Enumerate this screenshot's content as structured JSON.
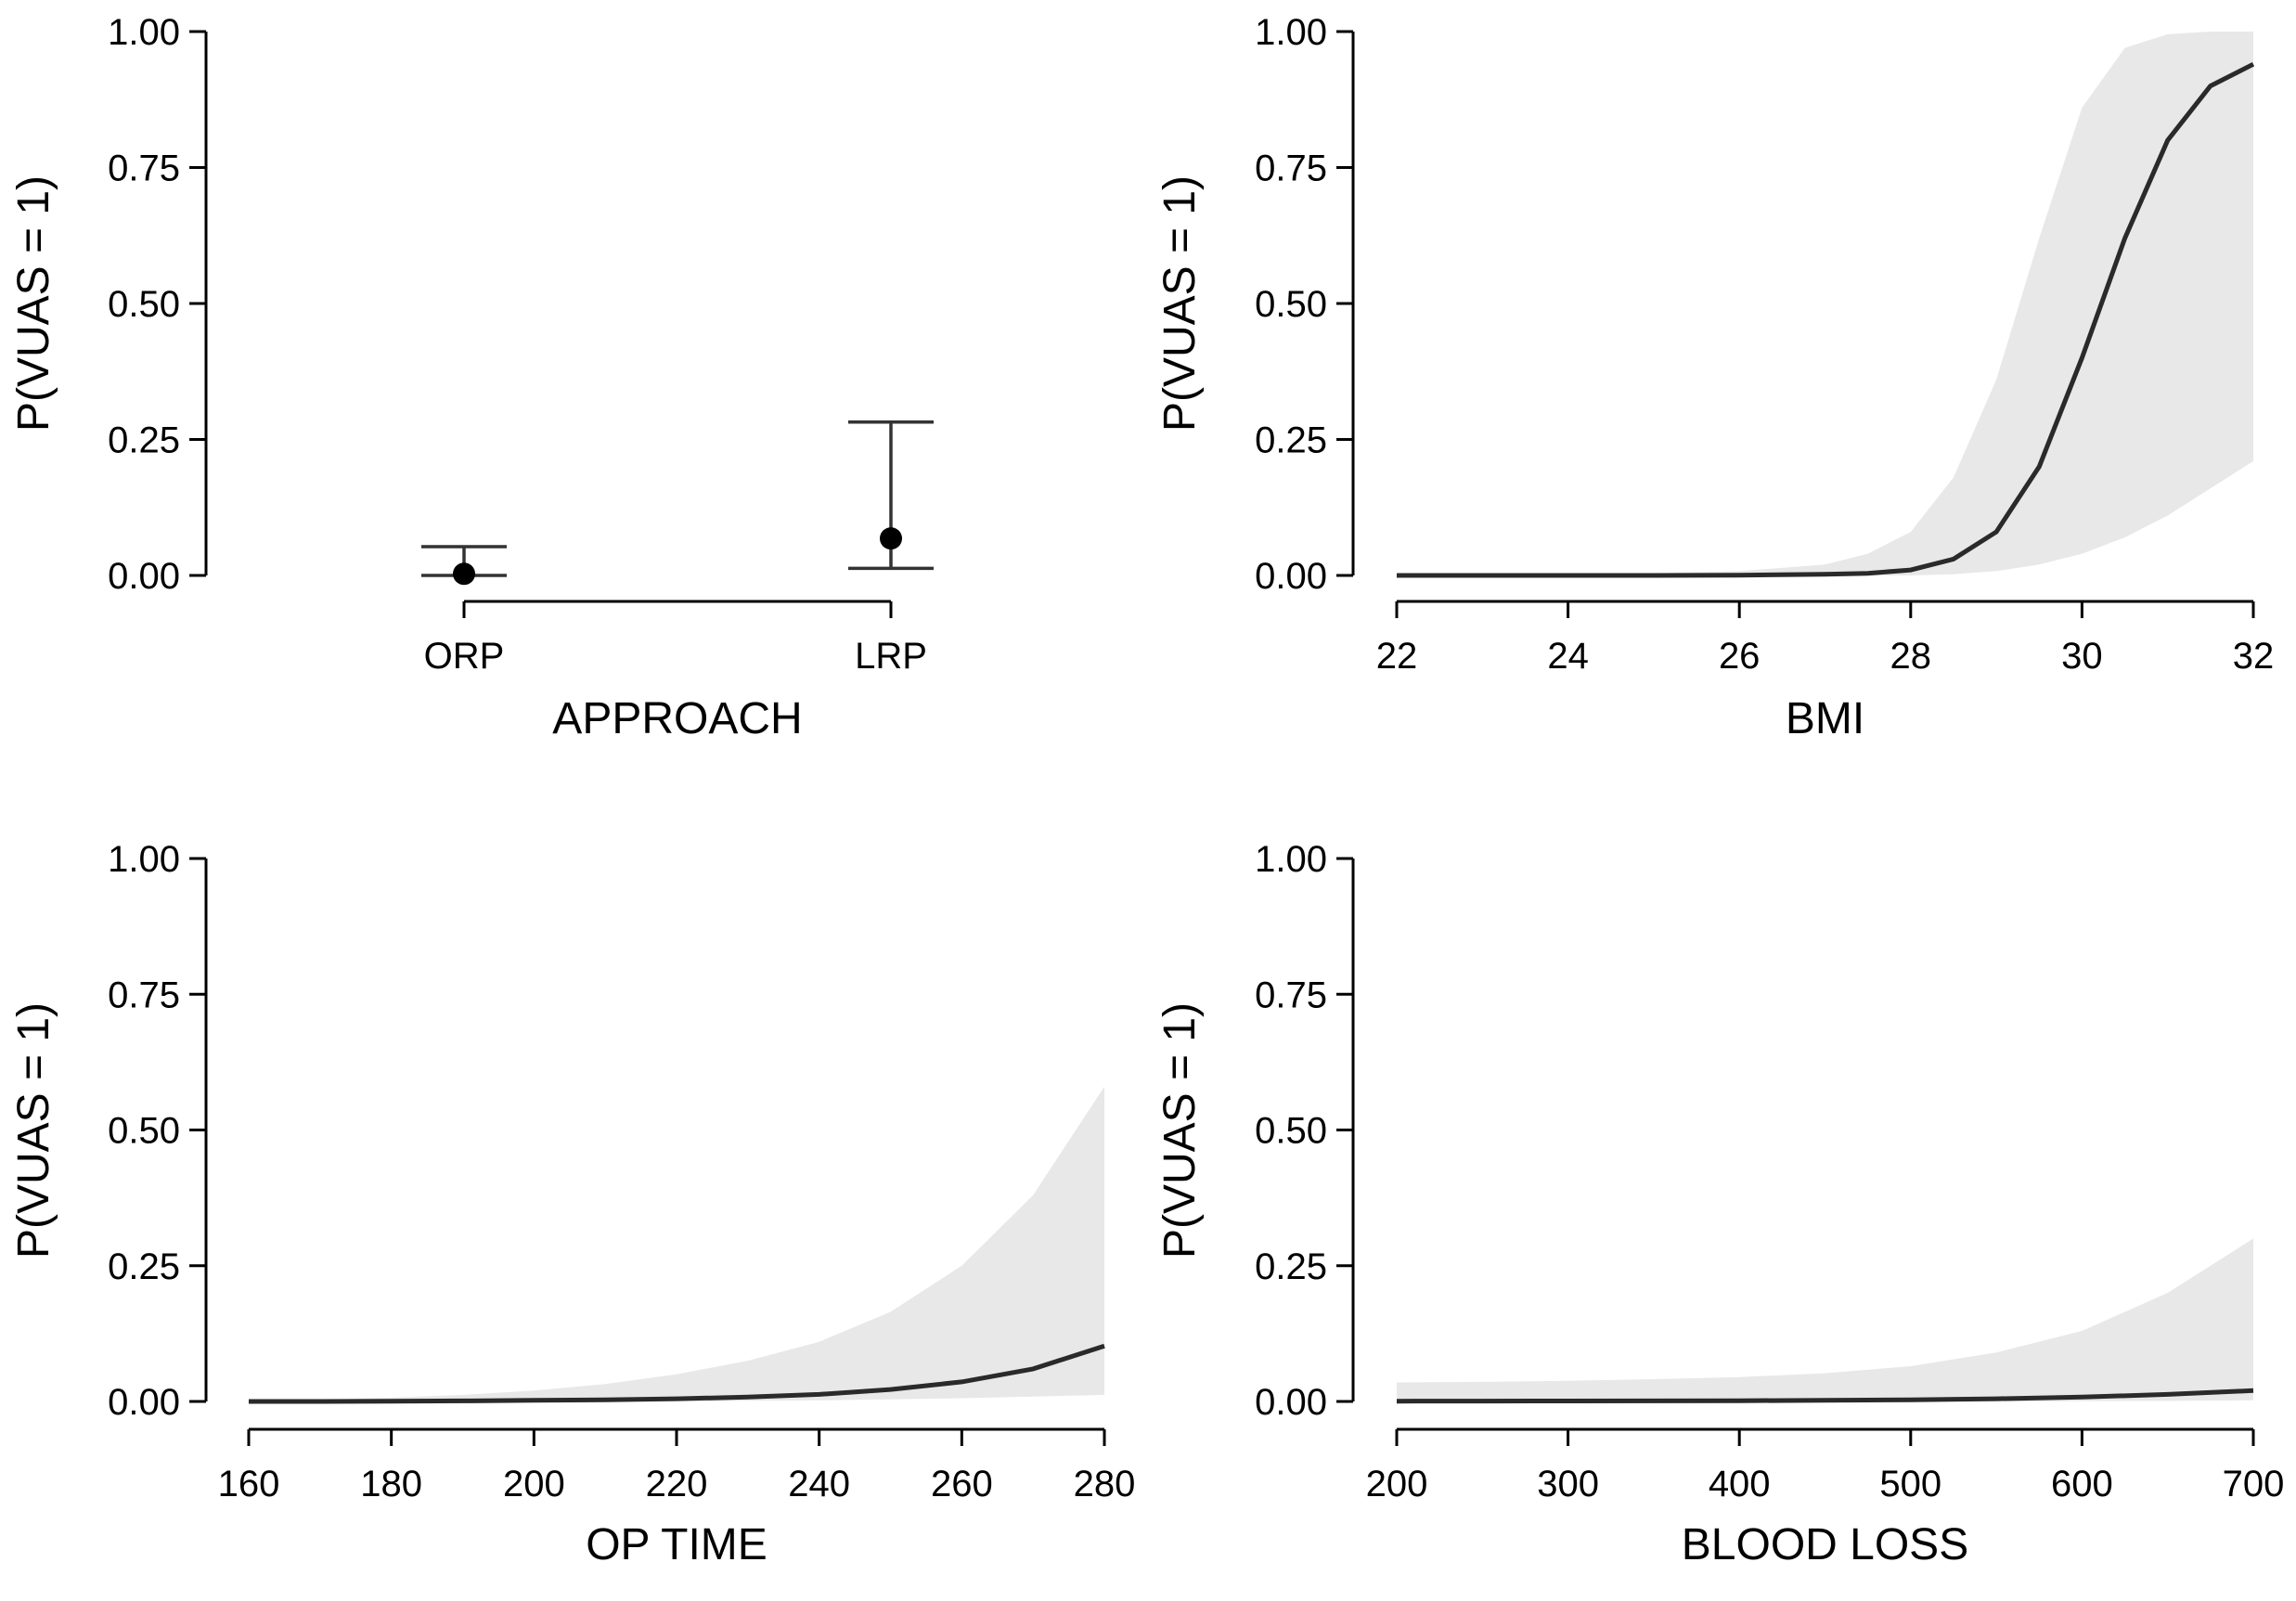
{
  "chart_data": [
    {
      "type": "point-errorbar",
      "panel": "APPROACH",
      "xlabel": "APPROACH",
      "ylabel": "P(VUAS = 1)",
      "ylim": [
        0,
        1
      ],
      "yticks": [
        "0.00",
        "0.25",
        "0.50",
        "0.75",
        "1.00"
      ],
      "categories": [
        "ORP",
        "LRP"
      ],
      "values": [
        0.003,
        0.068
      ],
      "lower": [
        0.0,
        0.013
      ],
      "upper": [
        0.053,
        0.282
      ]
    },
    {
      "type": "line",
      "panel": "BMI",
      "xlabel": "BMI",
      "ylabel": "P(VUAS = 1)",
      "xlim": [
        22,
        32
      ],
      "ylim": [
        0,
        1
      ],
      "xticks": [
        "22",
        "24",
        "26",
        "28",
        "30",
        "32"
      ],
      "yticks": [
        "0.00",
        "0.25",
        "0.50",
        "0.75",
        "1.00"
      ],
      "x": [
        22,
        23,
        24,
        25,
        26,
        27,
        27.5,
        28,
        28.5,
        29,
        29.5,
        30,
        30.5,
        31,
        31.5,
        32
      ],
      "y": [
        0.0,
        0.0,
        0.0,
        0.0,
        0.0005,
        0.002,
        0.004,
        0.01,
        0.03,
        0.08,
        0.2,
        0.4,
        0.62,
        0.8,
        0.9,
        0.94
      ],
      "lower": [
        0.0,
        0.0,
        0.0,
        0.0,
        0.0,
        0.0,
        0.0,
        0.0,
        0.002,
        0.008,
        0.02,
        0.04,
        0.07,
        0.11,
        0.16,
        0.21
      ],
      "upper": [
        0.0,
        0.001,
        0.002,
        0.004,
        0.008,
        0.02,
        0.04,
        0.08,
        0.18,
        0.36,
        0.62,
        0.86,
        0.97,
        0.995,
        1.0,
        1.0
      ]
    },
    {
      "type": "line",
      "panel": "OP TIME",
      "xlabel": "OP TIME",
      "ylabel": "P(VUAS = 1)",
      "xlim": [
        160,
        280
      ],
      "ylim": [
        0,
        1
      ],
      "xticks": [
        "160",
        "180",
        "200",
        "220",
        "240",
        "260",
        "280"
      ],
      "yticks": [
        "0.00",
        "0.25",
        "0.50",
        "0.75",
        "1.00"
      ],
      "x": [
        160,
        170,
        180,
        190,
        200,
        210,
        220,
        230,
        240,
        250,
        260,
        270,
        280
      ],
      "y": [
        0.0,
        0.0,
        0.0005,
        0.001,
        0.002,
        0.003,
        0.005,
        0.008,
        0.013,
        0.022,
        0.036,
        0.06,
        0.102
      ],
      "lower": [
        0.0,
        0.0,
        0.0,
        0.0,
        0.0,
        0.0,
        0.0005,
        0.001,
        0.002,
        0.004,
        0.006,
        0.009,
        0.012
      ],
      "upper": [
        0.0,
        0.003,
        0.007,
        0.012,
        0.02,
        0.032,
        0.05,
        0.075,
        0.11,
        0.165,
        0.25,
        0.38,
        0.58
      ]
    },
    {
      "type": "line",
      "panel": "BLOOD LOSS",
      "xlabel": "BLOOD LOSS",
      "ylabel": "P(VUAS = 1)",
      "xlim": [
        200,
        700
      ],
      "ylim": [
        0,
        1
      ],
      "xticks": [
        "200",
        "300",
        "400",
        "500",
        "600",
        "700"
      ],
      "yticks": [
        "0.00",
        "0.25",
        "0.50",
        "0.75",
        "1.00"
      ],
      "x": [
        200,
        250,
        300,
        350,
        400,
        450,
        500,
        550,
        600,
        650,
        700
      ],
      "y": [
        0.0005,
        0.0006,
        0.0008,
        0.001,
        0.0013,
        0.002,
        0.003,
        0.005,
        0.008,
        0.013,
        0.02
      ],
      "lower": [
        0.0,
        0.0,
        0.0,
        0.0,
        0.0,
        0.0,
        0.0,
        0.0,
        0.0005,
        0.001,
        0.002
      ],
      "upper": [
        0.035,
        0.036,
        0.038,
        0.041,
        0.045,
        0.052,
        0.065,
        0.09,
        0.13,
        0.2,
        0.3
      ]
    }
  ]
}
